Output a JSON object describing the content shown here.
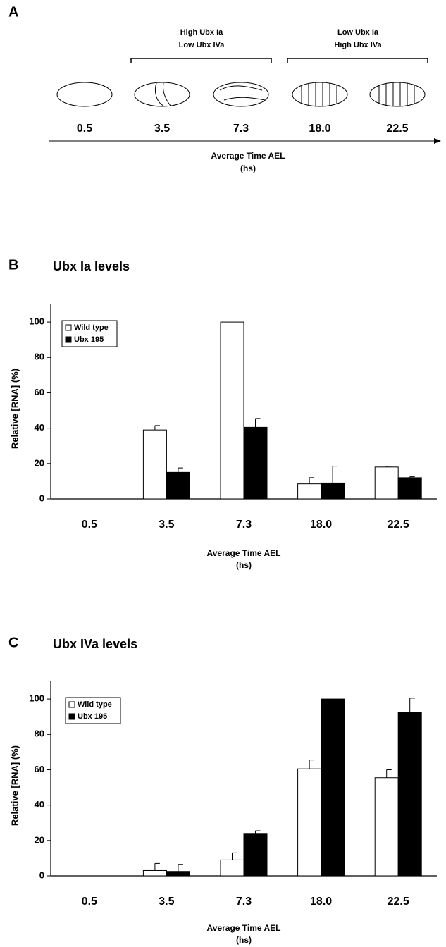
{
  "panel_a": {
    "label": "A",
    "groups": [
      {
        "lines": [
          "High Ubx Ia",
          "Low Ubx IVa"
        ]
      },
      {
        "lines": [
          "Low Ubx Ia",
          "High Ubx IVa"
        ]
      }
    ],
    "times": [
      "0.5",
      "3.5",
      "7.3",
      "18.0",
      "22.5"
    ],
    "axis_label": [
      "Average Time AEL",
      "(hs)"
    ]
  },
  "chart_data": [
    {
      "type": "bar",
      "panel": "B",
      "title": "Ubx Ia levels",
      "categories": [
        "0.5",
        "3.5",
        "7.3",
        "18.0",
        "22.5"
      ],
      "series": [
        {
          "name": "Wild type",
          "color": "#ffffff",
          "values": [
            0,
            39,
            100,
            8.5,
            18
          ],
          "errors": [
            0,
            2.5,
            0,
            3.5,
            0.5
          ]
        },
        {
          "name": "Ubx 195",
          "color": "#000000",
          "values": [
            0,
            15,
            40.5,
            9,
            12
          ],
          "errors": [
            0,
            2.5,
            5,
            9.5,
            0.5
          ]
        }
      ],
      "ylim": [
        0,
        110
      ],
      "yticks": [
        0,
        20,
        40,
        60,
        80,
        100
      ],
      "y_label": "Relative [RNA] (%)",
      "x_label": [
        "Average Time AEL",
        "(hs)"
      ],
      "legend": "upper-left"
    },
    {
      "type": "bar",
      "panel": "C",
      "title": "Ubx IVa levels",
      "categories": [
        "0.5",
        "3.5",
        "7.3",
        "18.0",
        "22.5"
      ],
      "series": [
        {
          "name": "Wild type",
          "color": "#ffffff",
          "values": [
            0,
            3,
            9,
            60.5,
            55.5
          ],
          "errors": [
            0,
            4,
            4,
            5,
            4.5
          ]
        },
        {
          "name": "Ubx 195",
          "color": "#000000",
          "values": [
            0,
            2.5,
            24,
            100,
            92.5
          ],
          "errors": [
            0,
            4,
            1.5,
            0,
            8
          ]
        }
      ],
      "ylim": [
        0,
        110
      ],
      "yticks": [
        0,
        20,
        40,
        60,
        80,
        100
      ],
      "y_label": "Relative [RNA] (%)",
      "x_label": [
        "Average Time AEL",
        "(hs)"
      ],
      "legend": "upper-left"
    }
  ]
}
